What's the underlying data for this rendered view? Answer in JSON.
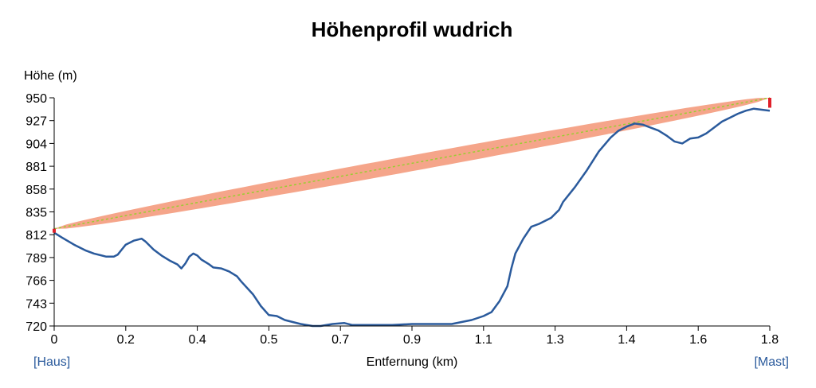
{
  "chart_data": {
    "type": "line",
    "title": "Höhenprofil wudrich",
    "xlabel": "Entfernung (km)",
    "ylabel": "Höhe (m)",
    "xlim": [
      0,
      1.8
    ],
    "ylim": [
      720,
      950
    ],
    "x_ticks": [
      "0",
      "0.2",
      "0.4",
      "0.5",
      "0.7",
      "0.9",
      "1.1",
      "1.3",
      "1.4",
      "1.6",
      "1.8"
    ],
    "y_ticks": [
      "720",
      "743",
      "766",
      "789",
      "812",
      "835",
      "858",
      "881",
      "904",
      "927",
      "950"
    ],
    "start_label": "[Haus]",
    "end_label": "[Mast]",
    "colors": {
      "terrain": "#2a5a9c",
      "fresnel_zone": "#f5a58a",
      "line_of_sight": "#9acd32",
      "antenna": "#e0202a"
    },
    "line_of_sight": {
      "start": [
        0,
        818
      ],
      "end": [
        1.8,
        950
      ]
    },
    "antennas": [
      {
        "x": 0,
        "y_from": 814,
        "y_to": 818
      },
      {
        "x": 1.8,
        "y_from": 940,
        "y_to": 950
      }
    ],
    "fresnel_max_halfwidth_m": 8,
    "series": [
      {
        "x": [
          0,
          0.02,
          0.05,
          0.08,
          0.1,
          0.13,
          0.15,
          0.16,
          0.17,
          0.18,
          0.2,
          0.22,
          0.23,
          0.25,
          0.27,
          0.29,
          0.31,
          0.32,
          0.33,
          0.34,
          0.35,
          0.36,
          0.37,
          0.39,
          0.4,
          0.42,
          0.44,
          0.46,
          0.47,
          0.5,
          0.52,
          0.54,
          0.56,
          0.58,
          0.6,
          0.62,
          0.65,
          0.67,
          0.7,
          0.73,
          0.75,
          0.8,
          0.85,
          0.9,
          0.95,
          1.0,
          1.05,
          1.08,
          1.1,
          1.12,
          1.14,
          1.15,
          1.16,
          1.18,
          1.2,
          1.22,
          1.25,
          1.27,
          1.28,
          1.31,
          1.34,
          1.37,
          1.4,
          1.42,
          1.44,
          1.46,
          1.48,
          1.5,
          1.52,
          1.54,
          1.56,
          1.58,
          1.6,
          1.62,
          1.64,
          1.66,
          1.68,
          1.7,
          1.72,
          1.74,
          1.76,
          1.78,
          1.8
        ],
        "y": [
          814,
          809,
          802,
          796,
          793,
          790,
          790,
          792,
          797,
          802,
          806,
          808,
          805,
          797,
          791,
          786,
          782,
          778,
          783,
          790,
          793,
          791,
          787,
          782,
          779,
          778,
          775,
          770,
          765,
          752,
          740,
          731,
          730,
          726,
          724,
          722,
          720,
          720,
          722,
          723,
          721,
          721,
          721,
          722,
          722,
          722,
          726,
          730,
          734,
          745,
          760,
          778,
          793,
          808,
          820,
          823,
          829,
          837,
          845,
          860,
          877,
          896,
          910,
          917,
          921,
          924,
          923,
          920,
          917,
          912,
          906,
          904,
          909,
          910,
          914,
          920,
          926,
          930,
          934,
          937,
          939,
          938,
          937
        ]
      }
    ]
  }
}
